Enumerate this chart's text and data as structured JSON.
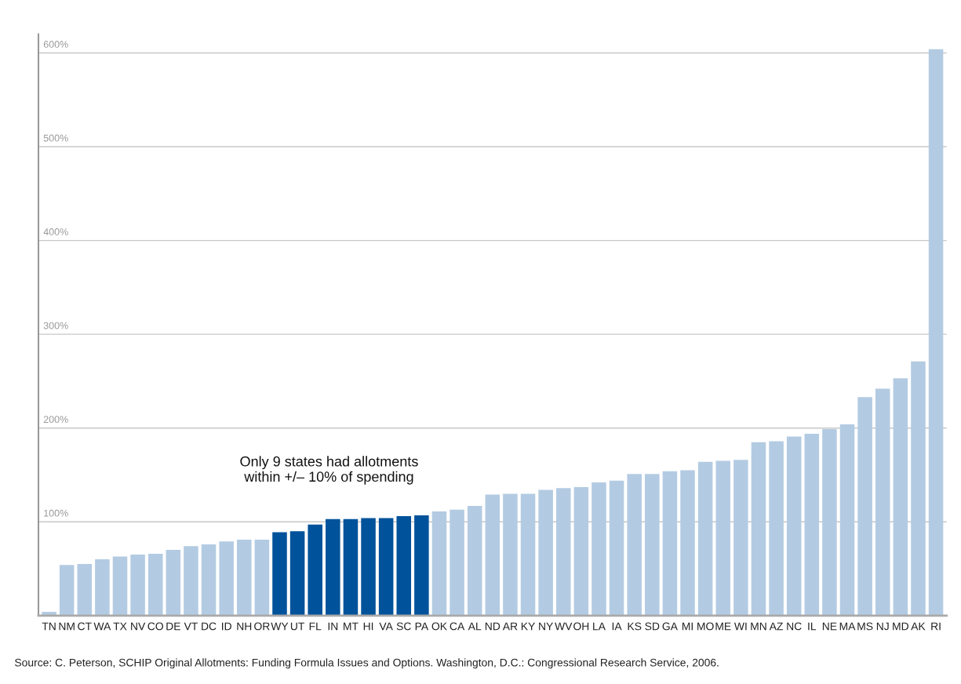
{
  "chart_data": {
    "type": "bar",
    "categories": [
      "TN",
      "NM",
      "CT",
      "WA",
      "TX",
      "NV",
      "CO",
      "DE",
      "VT",
      "DC",
      "ID",
      "NH",
      "OR",
      "WY",
      "UT",
      "FL",
      "IN",
      "MT",
      "HI",
      "VA",
      "SC",
      "PA",
      "OK",
      "CA",
      "AL",
      "ND",
      "AR",
      "KY",
      "NY",
      "WV",
      "OH",
      "LA",
      "IA",
      "KS",
      "SD",
      "GA",
      "MI",
      "MO",
      "ME",
      "WI",
      "MN",
      "AZ",
      "NC",
      "IL",
      "NE",
      "MA",
      "MS",
      "NJ",
      "MD",
      "AK",
      "RI"
    ],
    "values": [
      4,
      54,
      55,
      60,
      63,
      65,
      66,
      70,
      74,
      76,
      79,
      81,
      81,
      89,
      90,
      97,
      103,
      103,
      104,
      104,
      106,
      107,
      111,
      113,
      117,
      129,
      130,
      130,
      134,
      136,
      137,
      142,
      144,
      151,
      151,
      154,
      155,
      164,
      165,
      166,
      185,
      186,
      191,
      194,
      199,
      204,
      233,
      242,
      253,
      271,
      604
    ],
    "colors": [
      "#b3cbe2",
      "#b3cbe2",
      "#b3cbe2",
      "#b3cbe2",
      "#b3cbe2",
      "#b3cbe2",
      "#b3cbe2",
      "#b3cbe2",
      "#b3cbe2",
      "#b3cbe2",
      "#b3cbe2",
      "#b3cbe2",
      "#b3cbe2",
      "#00529b",
      "#00529b",
      "#00529b",
      "#00529b",
      "#00529b",
      "#00529b",
      "#00529b",
      "#00529b",
      "#00529b",
      "#b3cbe2",
      "#b3cbe2",
      "#b3cbe2",
      "#b3cbe2",
      "#b3cbe2",
      "#b3cbe2",
      "#b3cbe2",
      "#b3cbe2",
      "#b3cbe2",
      "#b3cbe2",
      "#b3cbe2",
      "#b3cbe2",
      "#b3cbe2",
      "#b3cbe2",
      "#b3cbe2",
      "#b3cbe2",
      "#b3cbe2",
      "#b3cbe2",
      "#b3cbe2",
      "#b3cbe2",
      "#b3cbe2",
      "#b3cbe2",
      "#b3cbe2",
      "#b3cbe2",
      "#b3cbe2",
      "#b3cbe2",
      "#b3cbe2",
      "#b3cbe2",
      "#b3cbe2"
    ],
    "ylim": [
      0,
      620
    ],
    "yticks": [
      {
        "value": 0,
        "label": null
      },
      {
        "value": 100,
        "label": "100%"
      },
      {
        "value": 200,
        "label": "200%"
      },
      {
        "value": 300,
        "label": "300%"
      },
      {
        "value": 400,
        "label": "400%"
      },
      {
        "value": 500,
        "label": "500%"
      },
      {
        "value": 600,
        "label": "600%"
      }
    ],
    "grid": "y",
    "annotations": [
      "Only 9 states had allotments\nwithin +/– 10% of spending",
      "Source: C. Peterson, SCHIP Original Allotments: Funding Formula Issues and Options. Washington, D.C.: Congressional Research Service, 2006."
    ]
  }
}
